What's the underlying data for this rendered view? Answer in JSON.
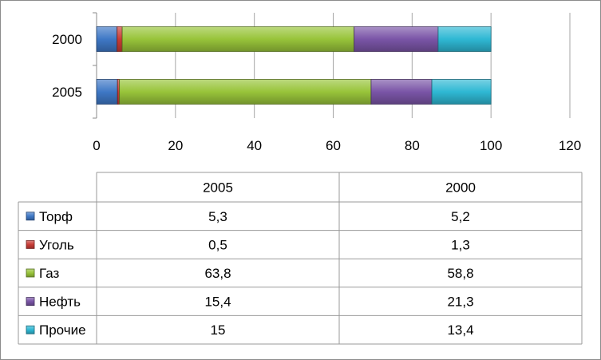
{
  "chart_data": {
    "type": "bar",
    "orientation": "horizontal",
    "stacked": true,
    "categories": [
      "2005",
      "2000"
    ],
    "series": [
      {
        "name": "Торф",
        "color": "#3f78c6",
        "values": [
          5.3,
          5.2
        ]
      },
      {
        "name": "Уголь",
        "color": "#c83c36",
        "values": [
          0.5,
          1.3
        ]
      },
      {
        "name": "Газ",
        "color": "#98c43a",
        "values": [
          63.8,
          58.8
        ]
      },
      {
        "name": "Нефть",
        "color": "#7a55a7",
        "values": [
          15.4,
          21.3
        ]
      },
      {
        "name": "Прочие",
        "color": "#2fb8d4",
        "values": [
          15,
          13.4
        ]
      }
    ],
    "value_labels": {
      "Торф": [
        "5,3",
        "5,2"
      ],
      "Уголь": [
        "0,5",
        "1,3"
      ],
      "Газ": [
        "63,8",
        "58,8"
      ],
      "Нефть": [
        "15,4",
        "21,3"
      ],
      "Прочие": [
        "15",
        "13,4"
      ]
    },
    "xlim": [
      0,
      120
    ],
    "x_ticks": [
      "0",
      "20",
      "40",
      "60",
      "80",
      "100",
      "120"
    ],
    "grid": true,
    "legend": "data-table-below",
    "title": "",
    "xlabel": "",
    "ylabel": ""
  }
}
